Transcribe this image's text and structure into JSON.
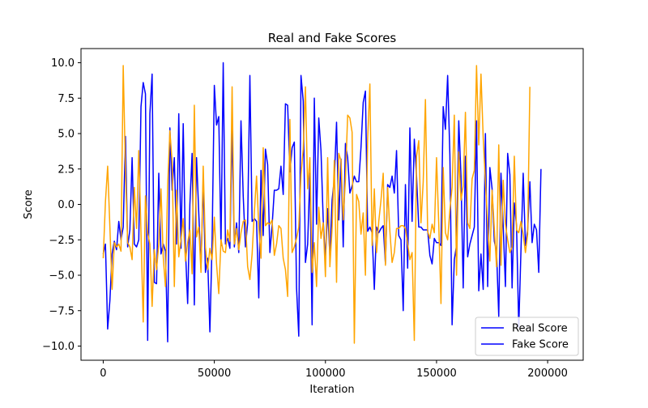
{
  "chart_data": {
    "type": "line",
    "title": "Real and Fake Scores",
    "xlabel": "Iteration",
    "ylabel": "Score",
    "xlim": [
      -10000,
      216000
    ],
    "ylim": [
      -11,
      11
    ],
    "x_ticks": [
      0,
      50000,
      100000,
      150000,
      200000
    ],
    "x_tick_labels": [
      "0",
      "50000",
      "100000",
      "150000",
      "200000"
    ],
    "y_ticks": [
      -10,
      -7.5,
      -5,
      -2.5,
      0,
      2.5,
      5,
      7.5,
      10
    ],
    "y_tick_labels": [
      "−10.0",
      "−7.5",
      "−5.0",
      "−2.5",
      "0.0",
      "2.5",
      "5.0",
      "7.5",
      "10.0"
    ],
    "grid": false,
    "legend_position": "lower-right",
    "x_start": 0,
    "x_step": 1000,
    "series": [
      {
        "name": "Real Score",
        "color": "#0000ff",
        "values": [
          -3.5,
          -2.8,
          -8.8,
          -6.8,
          -3.5,
          -2.6,
          -3.2,
          -1.2,
          -2.5,
          -1.6,
          4.8,
          -3.0,
          -1.8,
          3.3,
          -2.8,
          -3.0,
          -2.5,
          6.9,
          8.6,
          7.8,
          -9.6,
          6.4,
          9.2,
          -5.5,
          -5.6,
          2.2,
          -3.5,
          -2.8,
          -3.3,
          -9.7,
          5.4,
          1.0,
          3.3,
          -2.8,
          6.4,
          -3.1,
          5.7,
          -3.2,
          -7.0,
          0.0,
          3.6,
          -7.1,
          3.3,
          -0.6,
          -4.5,
          1.7,
          -4.8,
          -3.8,
          -9.0,
          -2.6,
          8.4,
          5.6,
          6.2,
          -2.9,
          10.0,
          -2.8,
          -2.4,
          -3.1,
          5.3,
          -3.0,
          -1.3,
          -3.4,
          5.9,
          0.6,
          -3.0,
          -1.3,
          9.1,
          -1.2,
          -1.0,
          -1.2,
          -6.6,
          2.4,
          -2.2,
          3.9,
          2.8,
          -3.4,
          -1.5,
          1.0,
          1.0,
          1.1,
          2.7,
          0.7,
          7.1,
          7.0,
          2.3,
          4.0,
          4.4,
          -5.9,
          -9.3,
          9.1,
          7.3,
          -4.1,
          -2.8,
          2.2,
          -8.5,
          7.5,
          -1.4,
          6.1,
          3.8,
          -1.1,
          -3.9,
          -0.3,
          -3.7,
          0.3,
          1.8,
          5.8,
          -1.1,
          3.2,
          -3.0,
          4.3,
          3.3,
          0.8,
          1.3,
          2.0,
          1.6,
          1.6,
          4.0,
          7.2,
          8.0,
          -1.9,
          -1.6,
          -2.0,
          -6.0,
          -1.6,
          -2.0,
          -1.7,
          -1.5,
          -4.2,
          1.4,
          1.2,
          2.0,
          0.8,
          3.8,
          -2.2,
          -2.5,
          -7.5,
          1.4,
          -4.5,
          5.4,
          -1.2,
          4.6,
          2.0,
          -1.6,
          -1.6,
          -1.8,
          -1.8,
          -1.8,
          -3.6,
          -4.2,
          -2.4,
          -2.7,
          -2.7,
          -2.9,
          6.9,
          5.3,
          9.1,
          3.5,
          -8.5,
          -3.9,
          -2.9,
          5.9,
          2.0,
          -5.9,
          3.4,
          -3.7,
          -2.8,
          -2.2,
          -1.6,
          5.9,
          -6.1,
          -3.5,
          -6.0,
          5.0,
          -5.8,
          2.6,
          1.1,
          -2.6,
          -3.3,
          -7.9,
          2.2,
          -1.5,
          -5.8,
          3.6,
          2.1,
          -5.9,
          0.1,
          -1.5,
          -8.7,
          -3.2,
          2.2,
          -2.9,
          -1.8,
          1.6,
          -2.7,
          -1.4,
          -1.8,
          -4.8,
          2.5
        ],
        "legend_label": "Real Score"
      },
      {
        "name": "Fake Score",
        "color": "#ffa500",
        "values": [
          -3.8,
          0.2,
          2.7,
          -1.6,
          -6.0,
          -2.7,
          -3.0,
          -2.8,
          -3.3,
          9.8,
          2.5,
          -2.7,
          -3.0,
          -3.9,
          1.2,
          -1.7,
          3.8,
          -2.0,
          -8.3,
          0.6,
          -2.0,
          -2.8,
          -7.2,
          -3.2,
          -4.6,
          -2.8,
          1.1,
          -3.7,
          -5.8,
          1.3,
          5.2,
          3.0,
          -5.8,
          1.0,
          -3.7,
          -2.5,
          -1.0,
          -4.0,
          -2.7,
          -1.8,
          -4.9,
          7.0,
          -2.3,
          -1.6,
          -4.8,
          2.7,
          -3.0,
          -4.6,
          -3.1,
          -3.9,
          -0.9,
          -4.2,
          -6.3,
          -2.5,
          -3.3,
          -3.4,
          -1.8,
          -2.6,
          8.3,
          -2.8,
          -1.7,
          -3.2,
          -2.0,
          -1.2,
          -1.1,
          -4.4,
          -5.3,
          -3.5,
          -0.6,
          2.0,
          -1.6,
          -3.8,
          4.0,
          -1.5,
          -1.3,
          -1.4,
          -1.1,
          -3.6,
          -2.8,
          -1.5,
          -1.7,
          -3.8,
          -4.6,
          -6.5,
          6.0,
          -3.4,
          -3.0,
          -2.4,
          -1.6,
          2.1,
          3.9,
          8.3,
          1.1,
          3.3,
          -4.8,
          -2.7,
          -5.8,
          -0.2,
          -2.4,
          -1.3,
          -5.1,
          3.3,
          -4.4,
          -1.7,
          3.1,
          -5.5,
          3.6,
          3.1,
          -1.1,
          1.8,
          6.3,
          6.1,
          5.1,
          -9.8,
          0.7,
          0.2,
          -2.1,
          -0.6,
          -5.0,
          4.6,
          8.5,
          -2.9,
          1.1,
          -3.4,
          -1.2,
          0.3,
          2.2,
          -4.3,
          1.2,
          -1.9,
          -4.1,
          -3.4,
          -1.7,
          -1.7,
          -1.5,
          -1.5,
          -1.7,
          -2.8,
          -3.9,
          -3.4,
          -9.6,
          3.4,
          4.5,
          -1.3,
          1.6,
          7.4,
          -1.9,
          -2.4,
          -1.4,
          -2.0,
          3.3,
          -1.4,
          -7.0,
          2.6,
          -2.0,
          -2.5,
          -0.4,
          1.2,
          6.3,
          -5.0,
          3.7,
          0.3,
          1.3,
          6.5,
          -1.3,
          -1.7,
          1.8,
          2.4,
          9.8,
          4.2,
          9.2,
          4.7,
          1.6,
          -1.3,
          -4.0,
          1.0,
          -1.7,
          -4.4,
          4.2,
          -4.3,
          1.7,
          -1.4,
          -2.5,
          -3.4,
          -3.0,
          3.4,
          -1.8,
          -2.0,
          -1.2,
          -2.1,
          -3.4,
          -2.1,
          8.3
        ],
        "legend_label": "Fake Score",
        "legend_swatch_color": "#0000ff"
      }
    ]
  }
}
